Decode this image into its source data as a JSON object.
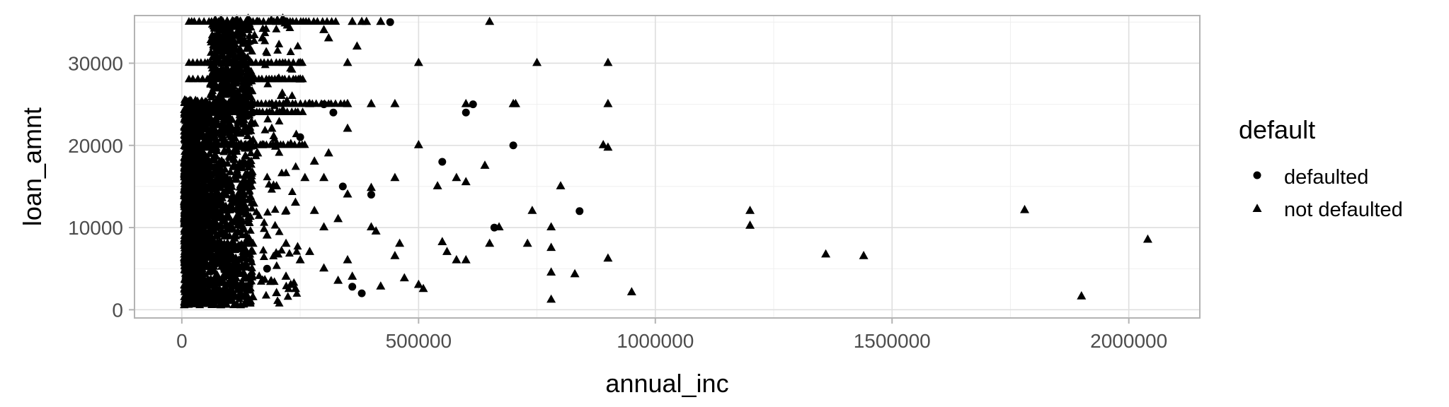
{
  "chart_data": {
    "type": "scatter",
    "xlabel": "annual_inc",
    "ylabel": "loan_amnt",
    "xlim": [
      -100000,
      2150000
    ],
    "ylim": [
      -1000,
      35800
    ],
    "x_ticks": [
      0,
      500000,
      1000000,
      1500000,
      2000000
    ],
    "x_tick_labels": [
      "0",
      "500000",
      "1000000",
      "1500000",
      "2000000"
    ],
    "y_ticks": [
      0,
      10000,
      20000,
      30000
    ],
    "y_tick_labels": [
      "0",
      "10000",
      "20000",
      "30000"
    ],
    "grid": true,
    "legend": {
      "title": "default",
      "position": "right",
      "entries": [
        {
          "label": "defaulted",
          "shape": "circle"
        },
        {
          "label": "not defaulted",
          "shape": "triangle"
        }
      ]
    },
    "series": [
      {
        "name": "defaulted",
        "shape": "circle",
        "points": [
          [
            440000,
            35000
          ],
          [
            600000,
            24000
          ],
          [
            615000,
            25000
          ],
          [
            700000,
            20000
          ],
          [
            550000,
            18000
          ],
          [
            660000,
            10000
          ],
          [
            840000,
            12000
          ],
          [
            380000,
            2000
          ],
          [
            360000,
            2800
          ],
          [
            300000,
            25000
          ],
          [
            340000,
            15000
          ],
          [
            200000,
            20000
          ],
          [
            250000,
            21000
          ],
          [
            150000,
            24000
          ],
          [
            180000,
            5000
          ],
          [
            320000,
            24000
          ],
          [
            400000,
            14000
          ],
          [
            120000,
            12000
          ],
          [
            90000,
            16000
          ],
          [
            60000,
            8000
          ]
        ]
      },
      {
        "name": "not defaulted",
        "shape": "triangle",
        "points": [
          [
            650000,
            35000
          ],
          [
            500000,
            30000
          ],
          [
            750000,
            30000
          ],
          [
            900000,
            30000
          ],
          [
            700000,
            25000
          ],
          [
            705000,
            25000
          ],
          [
            900000,
            25000
          ],
          [
            600000,
            25000
          ],
          [
            450000,
            25000
          ],
          [
            400000,
            25000
          ],
          [
            350000,
            25000
          ],
          [
            370000,
            32000
          ],
          [
            310000,
            33000
          ],
          [
            300000,
            34000
          ],
          [
            250000,
            30000
          ],
          [
            350000,
            22000
          ],
          [
            500000,
            20000
          ],
          [
            890000,
            20000
          ],
          [
            900000,
            19700
          ],
          [
            640000,
            17500
          ],
          [
            580000,
            16000
          ],
          [
            600000,
            15500
          ],
          [
            540000,
            15000
          ],
          [
            450000,
            16000
          ],
          [
            400000,
            14800
          ],
          [
            350000,
            14000
          ],
          [
            800000,
            15000
          ],
          [
            740000,
            12000
          ],
          [
            780000,
            10000
          ],
          [
            670000,
            10000
          ],
          [
            650000,
            8000
          ],
          [
            730000,
            8000
          ],
          [
            780000,
            7500
          ],
          [
            830000,
            4300
          ],
          [
            780000,
            4500
          ],
          [
            780000,
            1200
          ],
          [
            950000,
            2100
          ],
          [
            900000,
            6200
          ],
          [
            1200000,
            12000
          ],
          [
            1200000,
            10200
          ],
          [
            1360000,
            6700
          ],
          [
            1440000,
            6500
          ],
          [
            1780000,
            12100
          ],
          [
            1900000,
            1600
          ],
          [
            2040000,
            8500
          ],
          [
            500000,
            3000
          ],
          [
            510000,
            2500
          ],
          [
            470000,
            3800
          ],
          [
            420000,
            2800
          ],
          [
            450000,
            6500
          ],
          [
            460000,
            8000
          ],
          [
            550000,
            8200
          ],
          [
            560000,
            7000
          ],
          [
            580000,
            6000
          ],
          [
            600000,
            6000
          ],
          [
            400000,
            10000
          ],
          [
            410000,
            9500
          ],
          [
            300000,
            10000
          ],
          [
            330000,
            11000
          ],
          [
            270000,
            7000
          ],
          [
            250000,
            6000
          ],
          [
            220000,
            4000
          ],
          [
            230000,
            3000
          ],
          [
            300000,
            5000
          ],
          [
            350000,
            6000
          ],
          [
            360000,
            4000
          ],
          [
            330000,
            3500
          ],
          [
            200000,
            35000
          ],
          [
            220000,
            35000
          ],
          [
            160000,
            35000
          ],
          [
            170000,
            33000
          ],
          [
            140000,
            34000
          ],
          [
            110000,
            32000
          ],
          [
            100000,
            28000
          ],
          [
            250000,
            28000
          ],
          [
            210000,
            26000
          ],
          [
            190000,
            22000
          ],
          [
            160000,
            19000
          ],
          [
            130000,
            14000
          ],
          [
            220000,
            12000
          ],
          [
            280000,
            18000
          ],
          [
            310000,
            19000
          ],
          [
            300000,
            16000
          ],
          [
            260000,
            16000
          ],
          [
            200000,
            15000
          ],
          [
            240000,
            13000
          ],
          [
            280000,
            12000
          ],
          [
            150000,
            8000
          ],
          [
            180000,
            9000
          ],
          [
            220000,
            8000
          ],
          [
            200000,
            2000
          ],
          [
            240000,
            2500
          ],
          [
            150000,
            1500
          ],
          [
            100000,
            1200
          ],
          [
            60000,
            900
          ],
          [
            40000,
            1000
          ],
          [
            360000,
            35000
          ],
          [
            380000,
            35000
          ],
          [
            390000,
            35000
          ],
          [
            420000,
            35000
          ],
          [
            350000,
            30000
          ],
          [
            270000,
            25000
          ],
          [
            190000,
            25000
          ],
          [
            170000,
            20000
          ],
          [
            140000,
            25000
          ],
          [
            120000,
            20000
          ],
          [
            100000,
            22000
          ],
          [
            80000,
            24000
          ],
          [
            60000,
            20000
          ],
          [
            50000,
            15000
          ],
          [
            70000,
            10000
          ],
          [
            40000,
            5000
          ],
          [
            30000,
            8000
          ],
          [
            20000,
            3000
          ]
        ]
      }
    ]
  }
}
